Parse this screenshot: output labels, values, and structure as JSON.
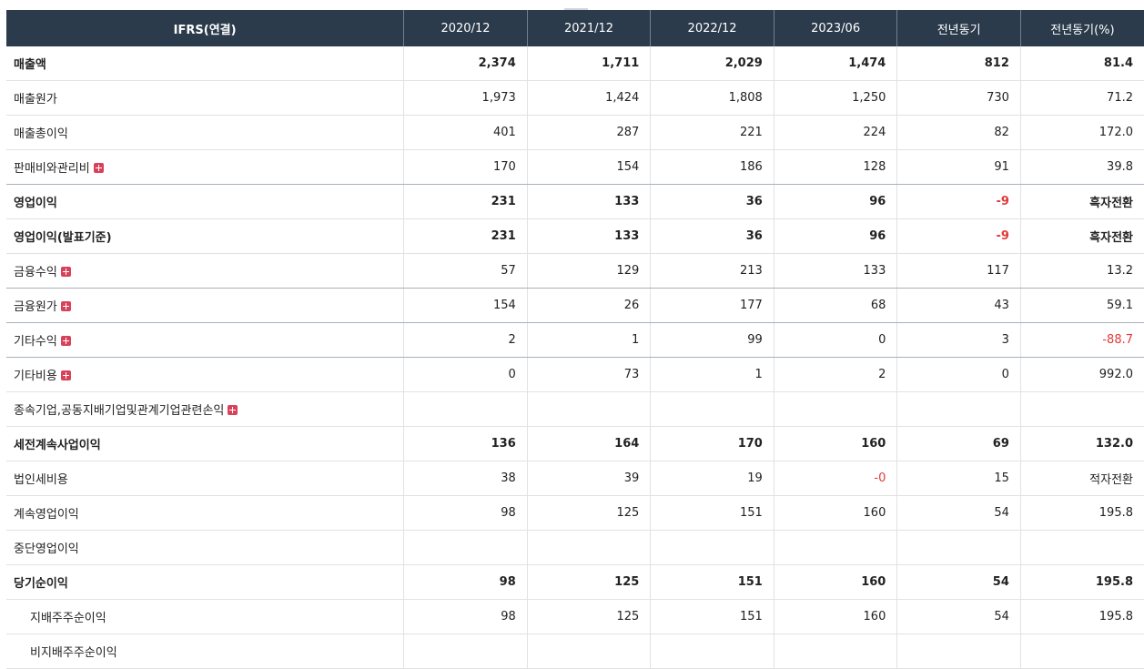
{
  "header": {
    "first": "IFRS(연결)",
    "cols": [
      "2020/12",
      "2021/12",
      "2022/12",
      "2023/06",
      "전년동기",
      "전년동기(%)"
    ]
  },
  "rows": [
    {
      "label": "매출액",
      "values": [
        "2,374",
        "1,711",
        "2,029",
        "1,474",
        "812",
        "81.4"
      ]
    },
    {
      "label": "매출원가",
      "values": [
        "1,973",
        "1,424",
        "1,808",
        "1,250",
        "730",
        "71.2"
      ]
    },
    {
      "label": "매출총이익",
      "values": [
        "401",
        "287",
        "221",
        "224",
        "82",
        "172.0"
      ]
    },
    {
      "label": "판매비와관리비",
      "values": [
        "170",
        "154",
        "186",
        "128",
        "91",
        "39.8"
      ]
    },
    {
      "label": "영업이익",
      "values": [
        "231",
        "133",
        "36",
        "96",
        "-9",
        "흑자전환"
      ]
    },
    {
      "label": "영업이익(발표기준)",
      "values": [
        "231",
        "133",
        "36",
        "96",
        "-9",
        "흑자전환"
      ]
    },
    {
      "label": "금융수익",
      "values": [
        "57",
        "129",
        "213",
        "133",
        "117",
        "13.2"
      ]
    },
    {
      "label": "금융원가",
      "values": [
        "154",
        "26",
        "177",
        "68",
        "43",
        "59.1"
      ]
    },
    {
      "label": "기타수익",
      "values": [
        "2",
        "1",
        "99",
        "0",
        "3",
        "-88.7"
      ]
    },
    {
      "label": "기타비용",
      "values": [
        "0",
        "73",
        "1",
        "2",
        "0",
        "992.0"
      ]
    },
    {
      "label": "종속기업,공동지배기업및관계기업관련손익",
      "values": [
        "",
        "",
        "",
        "",
        "",
        ""
      ]
    },
    {
      "label": "세전계속사업이익",
      "values": [
        "136",
        "164",
        "170",
        "160",
        "69",
        "132.0"
      ]
    },
    {
      "label": "법인세비용",
      "values": [
        "38",
        "39",
        "19",
        "-0",
        "15",
        "적자전환"
      ]
    },
    {
      "label": "계속영업이익",
      "values": [
        "98",
        "125",
        "151",
        "160",
        "54",
        "195.8"
      ]
    },
    {
      "label": "중단영업이익",
      "values": [
        "",
        "",
        "",
        "",
        "",
        ""
      ]
    },
    {
      "label": "당기순이익",
      "values": [
        "98",
        "125",
        "151",
        "160",
        "54",
        "195.8"
      ]
    },
    {
      "label": "지배주주순이익",
      "values": [
        "98",
        "125",
        "151",
        "160",
        "54",
        "195.8"
      ]
    },
    {
      "label": "비지배주주순이익",
      "values": [
        "",
        "",
        "",
        "",
        "",
        ""
      ]
    }
  ]
}
